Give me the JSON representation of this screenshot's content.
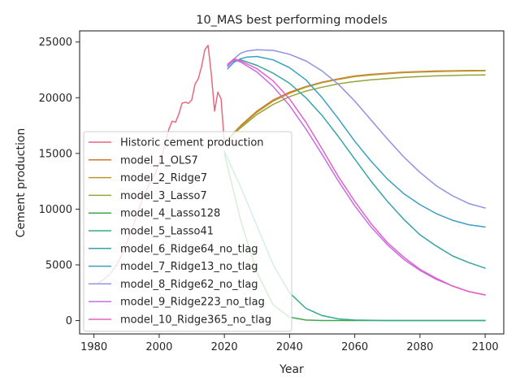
{
  "chart_data": {
    "type": "line",
    "title": "10_MAS best performing models",
    "xlabel": "Year",
    "ylabel": "Cement production",
    "xlim": [
      1975.6,
      2105.7
    ],
    "ylim": [
      -1200,
      26000
    ],
    "xticks": [
      1980,
      2000,
      2020,
      2040,
      2060,
      2080,
      2100
    ],
    "yticks": [
      0,
      5000,
      10000,
      15000,
      20000,
      25000
    ],
    "xtick_labels": [
      "1980",
      "2000",
      "2020",
      "2040",
      "2060",
      "2080",
      "2100"
    ],
    "ytick_labels": [
      "0",
      "5000",
      "10000",
      "15000",
      "20000",
      "25000"
    ],
    "grid": false,
    "legend_position": "center-left",
    "series": [
      {
        "name": "Historic cement production",
        "color": "#e8697d",
        "x": [
          1981,
          1983,
          1985,
          1987,
          1989,
          1991,
          1993,
          1995,
          1997,
          1999,
          2000,
          2001,
          2002,
          2003,
          2004,
          2005,
          2006,
          2007,
          2008,
          2009,
          2010,
          2011,
          2012,
          2013,
          2014,
          2015,
          2016,
          2017,
          2018,
          2019,
          2020
        ],
        "y": [
          3300,
          3700,
          4200,
          5000,
          6200,
          7700,
          9300,
          11000,
          12300,
          13300,
          14200,
          15000,
          16000,
          17200,
          17900,
          17800,
          18500,
          19500,
          19600,
          19500,
          19800,
          21200,
          21700,
          22800,
          24300,
          24700,
          22100,
          18800,
          20500,
          19900,
          16000
        ]
      },
      {
        "name": "model_1_OLS7",
        "color": "#d2762b",
        "x": [
          2020,
          2025,
          2030,
          2035,
          2040,
          2045,
          2050,
          2055,
          2060,
          2065,
          2070,
          2075,
          2080,
          2085,
          2090,
          2095,
          2100
        ],
        "y": [
          16000,
          17500,
          18800,
          19800,
          20500,
          21000,
          21400,
          21700,
          21950,
          22100,
          22200,
          22300,
          22350,
          22400,
          22420,
          22440,
          22450
        ]
      },
      {
        "name": "model_2_Ridge7",
        "color": "#b79b2a",
        "x": [
          2020,
          2025,
          2030,
          2035,
          2040,
          2045,
          2050,
          2055,
          2060,
          2065,
          2070,
          2075,
          2080,
          2085,
          2090,
          2095,
          2100
        ],
        "y": [
          16000,
          17400,
          18700,
          19700,
          20400,
          20950,
          21350,
          21650,
          21900,
          22050,
          22150,
          22250,
          22300,
          22350,
          22380,
          22400,
          22420
        ]
      },
      {
        "name": "model_3_Lasso7",
        "color": "#97a43a",
        "x": [
          2020,
          2025,
          2030,
          2035,
          2040,
          2045,
          2050,
          2055,
          2060,
          2065,
          2070,
          2075,
          2080,
          2085,
          2090,
          2095,
          2100
        ],
        "y": [
          16000,
          17300,
          18500,
          19400,
          20100,
          20600,
          20950,
          21250,
          21450,
          21600,
          21720,
          21820,
          21900,
          21960,
          22000,
          22030,
          22050
        ]
      },
      {
        "name": "model_4_Lasso128",
        "color": "#3ba94a",
        "x": [
          2020,
          2025,
          2030,
          2035,
          2040,
          2045,
          2050,
          2060,
          2070,
          2080,
          2090,
          2100
        ],
        "y": [
          15000,
          9000,
          4300,
          1400,
          300,
          50,
          0,
          0,
          0,
          0,
          0,
          0
        ]
      },
      {
        "name": "model_5_Lasso41",
        "color": "#37ab8a",
        "x": [
          2020,
          2025,
          2030,
          2035,
          2040,
          2045,
          2050,
          2055,
          2060,
          2070,
          2080,
          2090,
          2100
        ],
        "y": [
          15200,
          12000,
          8500,
          5000,
          2500,
          1100,
          450,
          150,
          50,
          0,
          0,
          0,
          0
        ]
      },
      {
        "name": "model_6_Ridge64_no_tlag",
        "color": "#36a3a4",
        "x": [
          2021,
          2023,
          2025,
          2030,
          2035,
          2040,
          2045,
          2050,
          2055,
          2060,
          2065,
          2070,
          2075,
          2080,
          2085,
          2090,
          2095,
          2100
        ],
        "y": [
          23000,
          23300,
          23400,
          22900,
          22200,
          21300,
          20000,
          18400,
          16500,
          14500,
          12500,
          10700,
          9100,
          7700,
          6700,
          5800,
          5200,
          4700
        ]
      },
      {
        "name": "model_7_Ridge13_no_tlag",
        "color": "#3a9fc4",
        "x": [
          2021,
          2023,
          2025,
          2027,
          2030,
          2035,
          2040,
          2045,
          2050,
          2055,
          2060,
          2065,
          2070,
          2075,
          2080,
          2085,
          2090,
          2095,
          2100
        ],
        "y": [
          22600,
          23200,
          23500,
          23650,
          23700,
          23400,
          22700,
          21600,
          20000,
          18100,
          16100,
          14300,
          12700,
          11400,
          10400,
          9600,
          9000,
          8600,
          8400
        ]
      },
      {
        "name": "model_8_Ridge62_no_tlag",
        "color": "#8f92e4",
        "x": [
          2021,
          2023,
          2025,
          2027,
          2030,
          2035,
          2040,
          2045,
          2050,
          2055,
          2060,
          2065,
          2070,
          2075,
          2080,
          2085,
          2090,
          2095,
          2100
        ],
        "y": [
          22900,
          23500,
          24000,
          24200,
          24300,
          24250,
          23900,
          23300,
          22400,
          21200,
          19700,
          18000,
          16300,
          14700,
          13300,
          12100,
          11200,
          10500,
          10100
        ]
      },
      {
        "name": "model_9_Ridge223_no_tlag",
        "color": "#c56ee6",
        "x": [
          2021,
          2023,
          2025,
          2030,
          2035,
          2040,
          2045,
          2050,
          2055,
          2060,
          2065,
          2070,
          2075,
          2080,
          2085,
          2090,
          2095,
          2100
        ],
        "y": [
          22800,
          23400,
          23200,
          22300,
          21000,
          19300,
          17200,
          14900,
          12500,
          10300,
          8400,
          6800,
          5500,
          4500,
          3700,
          3100,
          2600,
          2300
        ]
      },
      {
        "name": "model_10_Ridge365_no_tlag",
        "color": "#e262c9",
        "x": [
          2021,
          2023,
          2025,
          2030,
          2035,
          2040,
          2045,
          2050,
          2055,
          2060,
          2065,
          2070,
          2075,
          2080,
          2085,
          2090,
          2095,
          2100
        ],
        "y": [
          23000,
          23500,
          23300,
          22600,
          21500,
          19900,
          17800,
          15400,
          12900,
          10700,
          8700,
          7000,
          5700,
          4600,
          3800,
          3100,
          2600,
          2300
        ]
      }
    ]
  }
}
